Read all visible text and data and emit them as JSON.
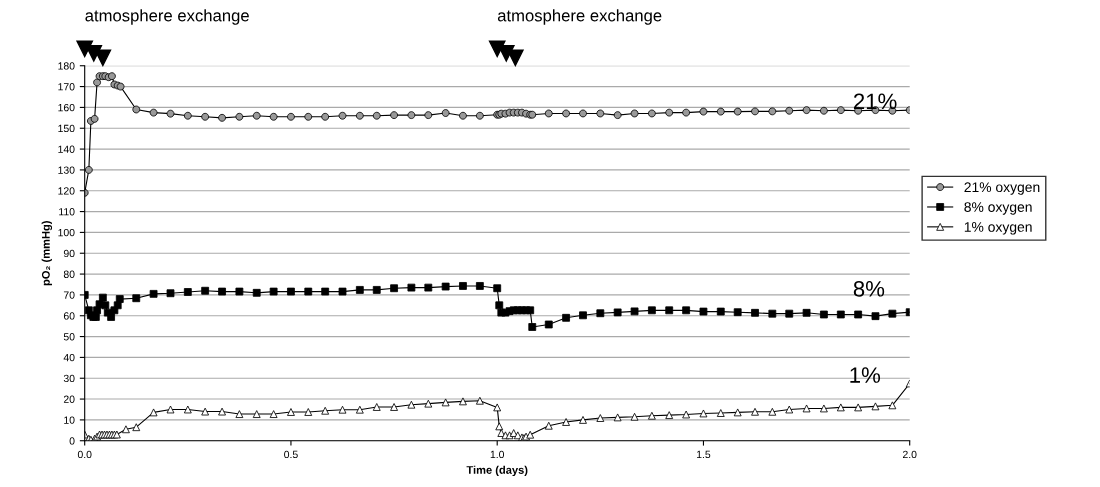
{
  "chart_data": {
    "type": "line",
    "xlabel": "Time (days)",
    "ylabel": "pO₂ (mmHg)",
    "xlim": [
      0,
      2
    ],
    "xticks": [
      {
        "value": 0,
        "label": "0.0"
      },
      {
        "value": 0.5,
        "label": "0.5"
      },
      {
        "value": 1,
        "label": "1.0"
      },
      {
        "value": 1.5,
        "label": "1.5"
      },
      {
        "value": 2,
        "label": "2.0"
      }
    ],
    "ylim": [
      0,
      180
    ],
    "yticks": [
      0,
      10,
      20,
      30,
      40,
      50,
      60,
      70,
      80,
      90,
      100,
      110,
      120,
      130,
      140,
      150,
      160,
      170,
      180
    ],
    "grid": "y",
    "legend": "right",
    "annotations": [
      "atmosphere exchange",
      "atmosphere exchange",
      "21%",
      "8%",
      "1%"
    ],
    "series": [
      {
        "name": "21% oxygen",
        "color": "#999999",
        "marker": "circle",
        "x": [
          0,
          0.01,
          0.015,
          0.024,
          0.03,
          0.036,
          0.044,
          0.05,
          0.058,
          0.066,
          0.072,
          0.08,
          0.087,
          0.125,
          0.167,
          0.208,
          0.25,
          0.292,
          0.333,
          0.375,
          0.417,
          0.458,
          0.5,
          0.542,
          0.583,
          0.625,
          0.667,
          0.708,
          0.75,
          0.792,
          0.833,
          0.875,
          0.917,
          0.958,
          1.0,
          1.005,
          1.01,
          1.02,
          1.03,
          1.04,
          1.05,
          1.06,
          1.07,
          1.08,
          1.085,
          1.125,
          1.167,
          1.208,
          1.25,
          1.292,
          1.333,
          1.375,
          1.417,
          1.458,
          1.5,
          1.542,
          1.583,
          1.625,
          1.667,
          1.708,
          1.75,
          1.792,
          1.833,
          1.875,
          1.917,
          1.958,
          2.0
        ],
        "values": [
          119,
          130,
          153.5,
          154.5,
          172,
          175,
          175,
          175,
          174.5,
          175,
          171,
          170.5,
          170,
          159,
          157.5,
          157,
          156,
          155.5,
          155,
          155.5,
          156,
          155.5,
          155.5,
          155.5,
          155.5,
          156,
          156,
          156,
          156.3,
          156.3,
          156.3,
          157.3,
          156,
          156,
          156.5,
          156.5,
          157,
          157,
          157.5,
          157.5,
          157.5,
          157.5,
          157,
          156.5,
          156.5,
          157.1,
          157.1,
          157.1,
          157.1,
          156.3,
          157.1,
          157.1,
          157.5,
          157.5,
          158,
          158,
          158,
          158.1,
          158.1,
          158.4,
          158.7,
          158.4,
          158.7,
          158.4,
          158.7,
          158.4,
          158.7
        ]
      },
      {
        "name": "8% oxygen",
        "color": "#000000",
        "marker": "square",
        "x": [
          0,
          0.01,
          0.015,
          0.021,
          0.027,
          0.03,
          0.036,
          0.044,
          0.05,
          0.056,
          0.064,
          0.072,
          0.08,
          0.085,
          0.125,
          0.167,
          0.208,
          0.25,
          0.292,
          0.333,
          0.375,
          0.417,
          0.458,
          0.5,
          0.542,
          0.583,
          0.625,
          0.667,
          0.708,
          0.75,
          0.792,
          0.833,
          0.875,
          0.917,
          0.958,
          1.0,
          1.005,
          1.01,
          1.02,
          1.03,
          1.04,
          1.05,
          1.06,
          1.07,
          1.08,
          1.085,
          1.125,
          1.167,
          1.208,
          1.25,
          1.292,
          1.333,
          1.375,
          1.417,
          1.458,
          1.5,
          1.542,
          1.583,
          1.625,
          1.667,
          1.708,
          1.75,
          1.792,
          1.833,
          1.875,
          1.917,
          1.958,
          2.0
        ],
        "values": [
          70,
          62.6,
          60.2,
          59.4,
          59.4,
          62.6,
          65.5,
          68.7,
          65,
          61.5,
          59.4,
          62.6,
          65,
          68,
          68.4,
          70.5,
          70.8,
          71.4,
          72,
          71.6,
          71.6,
          71,
          71.6,
          71.6,
          71.6,
          71.6,
          71.6,
          72.4,
          72.4,
          73.2,
          73.5,
          73.5,
          74,
          74.3,
          74.3,
          73.2,
          65,
          61.5,
          61.5,
          62.2,
          62.6,
          62.6,
          62.6,
          62.6,
          62.6,
          54.6,
          55.8,
          59,
          60.2,
          61.2,
          61.6,
          62.1,
          62.6,
          62.6,
          62.6,
          62,
          62,
          61.7,
          61.4,
          61,
          61,
          61.4,
          60.6,
          60.6,
          60.6,
          59.8,
          61,
          61.7
        ]
      },
      {
        "name": "1% oxygen",
        "color": "#ffffff",
        "marker": "triangle",
        "x": [
          0,
          0.01,
          0.015,
          0.024,
          0.03,
          0.036,
          0.042,
          0.048,
          0.054,
          0.06,
          0.066,
          0.072,
          0.078,
          0.1,
          0.125,
          0.167,
          0.208,
          0.25,
          0.292,
          0.333,
          0.375,
          0.417,
          0.458,
          0.5,
          0.542,
          0.583,
          0.625,
          0.667,
          0.708,
          0.75,
          0.792,
          0.833,
          0.875,
          0.917,
          0.958,
          1.0,
          1.005,
          1.01,
          1.02,
          1.03,
          1.04,
          1.05,
          1.06,
          1.065,
          1.07,
          1.08,
          1.125,
          1.167,
          1.208,
          1.25,
          1.292,
          1.333,
          1.375,
          1.417,
          1.458,
          1.5,
          1.542,
          1.583,
          1.625,
          1.667,
          1.708,
          1.75,
          1.792,
          1.833,
          1.875,
          1.917,
          1.958,
          2.0
        ],
        "values": [
          3,
          1,
          0.5,
          1,
          2,
          3,
          3,
          3,
          3,
          3,
          3,
          3,
          3,
          5.5,
          6.5,
          13.6,
          15,
          15,
          14,
          14,
          12.8,
          12.8,
          12.8,
          13.8,
          13.8,
          14.4,
          14.9,
          14.9,
          16.2,
          16.2,
          17.3,
          17.8,
          18.4,
          18.9,
          19.2,
          16,
          6.9,
          3.7,
          2.6,
          2.6,
          3.7,
          2.6,
          1.6,
          1.3,
          2,
          2.9,
          7.2,
          9,
          10,
          10.9,
          11.2,
          11.5,
          12,
          12.3,
          12.6,
          13.1,
          13.3,
          13.6,
          13.9,
          13.9,
          15,
          15.5,
          15.5,
          16,
          16,
          16.5,
          17,
          27.5
        ]
      }
    ]
  }
}
